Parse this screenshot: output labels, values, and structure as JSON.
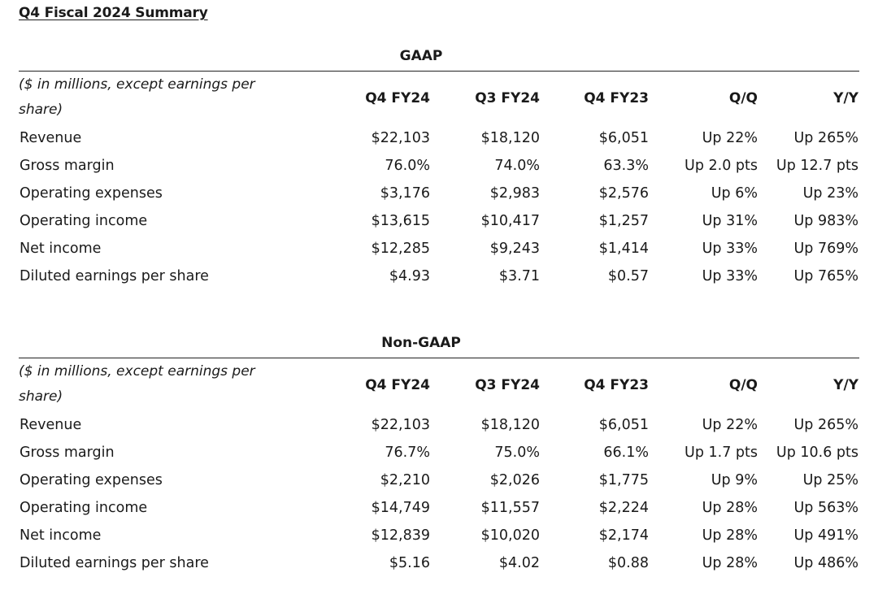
{
  "title": "Q4 Fiscal 2024 Summary",
  "columns": [
    "Q4 FY24",
    "Q3 FY24",
    "Q4 FY23",
    "Q/Q",
    "Y/Y"
  ],
  "unit_label": "($ in millions, except earnings per share)",
  "sections": [
    {
      "heading": "GAAP",
      "rows": [
        {
          "label": "Revenue",
          "values": [
            "$22,103",
            "$18,120",
            "$6,051",
            "Up 22%",
            "Up 265%"
          ]
        },
        {
          "label": "Gross margin",
          "values": [
            "76.0%",
            "74.0%",
            "63.3%",
            "Up 2.0 pts",
            "Up 12.7 pts"
          ]
        },
        {
          "label": "Operating expenses",
          "values": [
            "$3,176",
            "$2,983",
            "$2,576",
            "Up 6%",
            "Up 23%"
          ]
        },
        {
          "label": "Operating income",
          "values": [
            "$13,615",
            "$10,417",
            "$1,257",
            "Up 31%",
            "Up 983%"
          ]
        },
        {
          "label": "Net income",
          "values": [
            "$12,285",
            "$9,243",
            "$1,414",
            "Up 33%",
            "Up 769%"
          ]
        },
        {
          "label": "Diluted earnings per share",
          "values": [
            "$4.93",
            "$3.71",
            "$0.57",
            "Up 33%",
            "Up 765%"
          ]
        }
      ]
    },
    {
      "heading": "Non-GAAP",
      "rows": [
        {
          "label": "Revenue",
          "values": [
            "$22,103",
            "$18,120",
            "$6,051",
            "Up 22%",
            "Up 265%"
          ]
        },
        {
          "label": "Gross margin",
          "values": [
            "76.7%",
            "75.0%",
            "66.1%",
            "Up 1.7 pts",
            "Up 10.6 pts"
          ]
        },
        {
          "label": "Operating expenses",
          "values": [
            "$2,210",
            "$2,026",
            "$1,775",
            "Up 9%",
            "Up 25%"
          ]
        },
        {
          "label": "Operating income",
          "values": [
            "$14,749",
            "$11,557",
            "$2,224",
            "Up 28%",
            "Up 563%"
          ]
        },
        {
          "label": "Net income",
          "values": [
            "$12,839",
            "$10,020",
            "$2,174",
            "Up 28%",
            "Up 491%"
          ]
        },
        {
          "label": "Diluted earnings per share",
          "values": [
            "$5.16",
            "$4.02",
            "$0.88",
            "Up 28%",
            "Up 486%"
          ]
        }
      ]
    }
  ]
}
